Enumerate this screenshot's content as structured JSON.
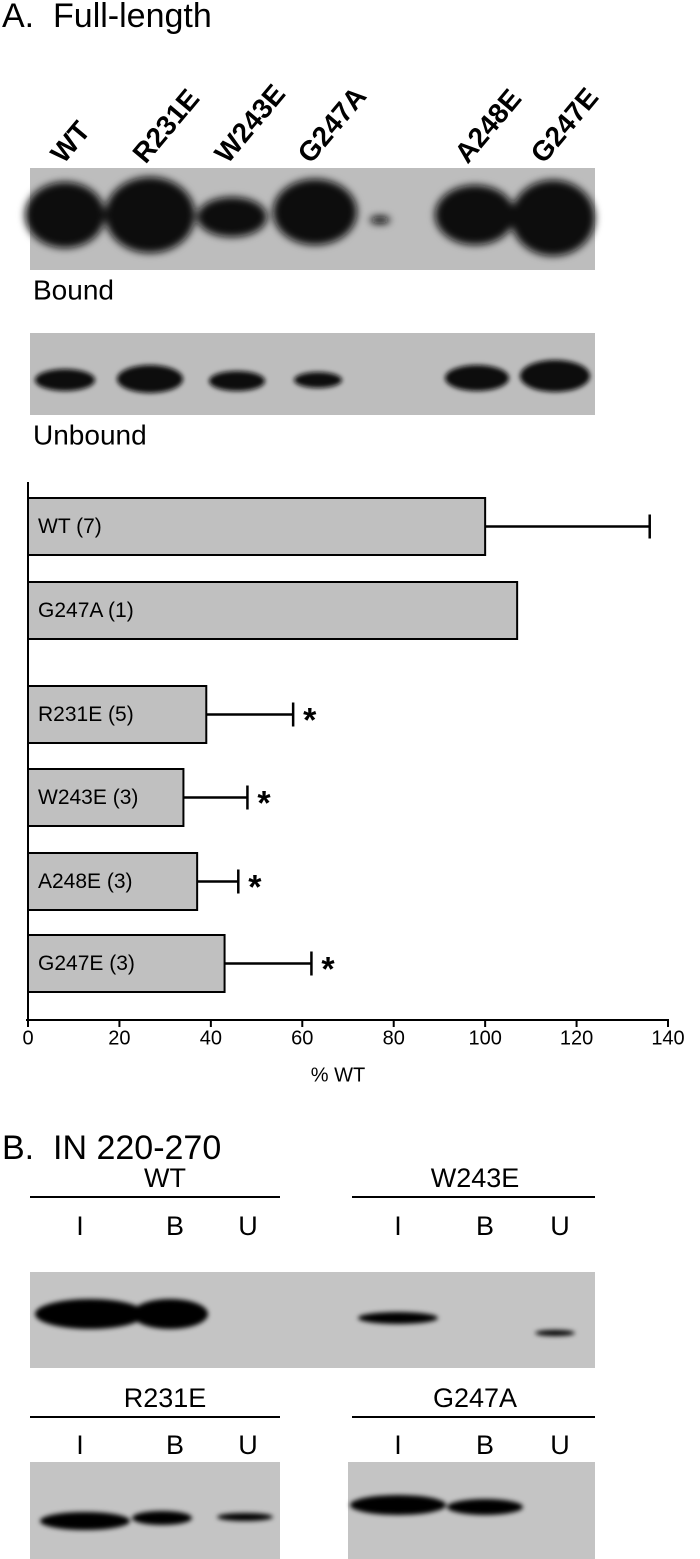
{
  "panel_a": {
    "title": "A.  Full-length",
    "lanes": [
      "WT",
      "R231E",
      "W243E",
      "G247A",
      "A248E",
      "G247E"
    ],
    "blot_labels": [
      "Bound",
      "Unbound"
    ]
  },
  "chart_data": {
    "type": "hbar",
    "categories": [
      "WT (7)",
      "G247A (1)",
      "R231E (5)",
      "W243E (3)",
      "A248E (3)",
      "G247E (3)"
    ],
    "values": [
      100,
      107,
      39,
      34,
      37,
      43
    ],
    "errors": [
      36,
      null,
      19,
      14,
      9,
      19
    ],
    "significance": [
      null,
      null,
      "*",
      "*",
      "*",
      "*"
    ],
    "color": "#c0c0c0",
    "xlabel": "% WT",
    "xlim": [
      0,
      140
    ],
    "xticks": [
      0,
      20,
      40,
      60,
      80,
      100,
      120,
      140
    ]
  },
  "panel_b": {
    "title": "B.  IN 220-270",
    "groups": [
      {
        "name": "WT",
        "lanes": [
          "I",
          "B",
          "U"
        ]
      },
      {
        "name": "W243E",
        "lanes": [
          "I",
          "B",
          "U"
        ]
      },
      {
        "name": "R231E",
        "lanes": [
          "I",
          "B",
          "U"
        ]
      },
      {
        "name": "G247A",
        "lanes": [
          "I",
          "B",
          "U"
        ]
      }
    ]
  }
}
